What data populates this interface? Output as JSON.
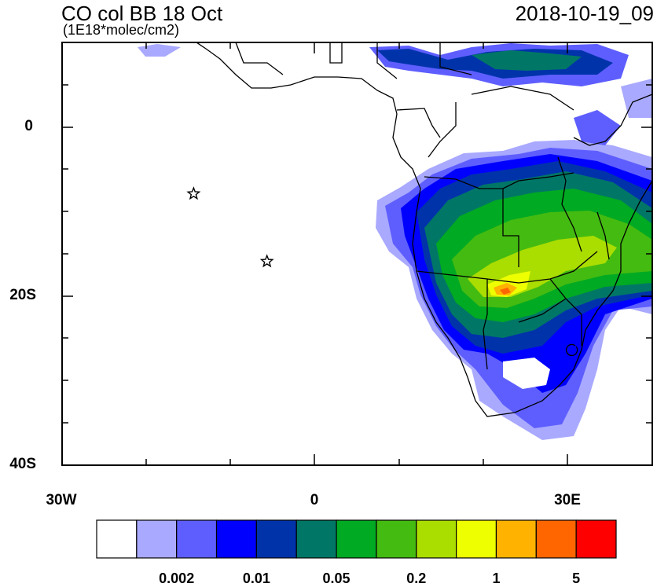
{
  "map": {
    "title": "CO col BB 18 Oct",
    "units": "(1E18*molec/cm2)",
    "timestamp": "2018-10-19_09",
    "lat_labels": [
      "0",
      "20S",
      "40S"
    ],
    "lon_labels": [
      "30W",
      "0",
      "30E"
    ],
    "lat_range": [
      -40,
      10
    ],
    "lon_range": [
      -30,
      40
    ],
    "markers": [
      {
        "name": "star",
        "lon": -14.4,
        "lat": -7.9
      },
      {
        "name": "star",
        "lon": -5.7,
        "lat": -15.9
      }
    ]
  },
  "colorbar": {
    "colors": [
      "#ffffff",
      "#a9a9ff",
      "#5e5eff",
      "#0000ff",
      "#0033aa",
      "#007766",
      "#00aa22",
      "#44bb11",
      "#aadd00",
      "#eeff00",
      "#ffb300",
      "#ff6600",
      "#ff0000"
    ],
    "labels": [
      "0.002",
      "0.01",
      "0.05",
      "0.2",
      "1",
      "5"
    ]
  }
}
